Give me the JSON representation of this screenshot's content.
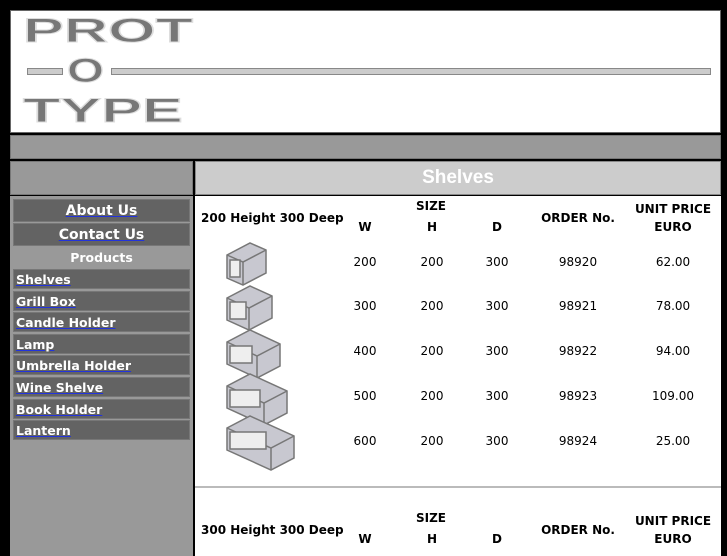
{
  "logo": {
    "lines": [
      "PROT",
      "O",
      "TYPE"
    ]
  },
  "page_title": "Shelves",
  "nav": {
    "top": [
      {
        "label": "About Us"
      },
      {
        "label": "Contact Us"
      }
    ],
    "section_label": "Products",
    "items": [
      {
        "label": "Shelves"
      },
      {
        "label": "Grill Box"
      },
      {
        "label": "Candle Holder"
      },
      {
        "label": "Lamp"
      },
      {
        "label": "Umbrella Holder"
      },
      {
        "label": "Wine Shelve"
      },
      {
        "label": "Book Holder"
      },
      {
        "label": "Lantern"
      }
    ]
  },
  "table_headers": {
    "size": "SIZE",
    "w": "W",
    "h": "H",
    "d": "D",
    "order": "ORDER No.",
    "price_line1": "UNIT PRICE",
    "price_line2": "EURO"
  },
  "sections": [
    {
      "label": "200 Height 300 Deep",
      "rows": [
        {
          "w": "200",
          "h": "200",
          "d": "300",
          "order": "98920",
          "price": "62.00"
        },
        {
          "w": "300",
          "h": "200",
          "d": "300",
          "order": "98921",
          "price": "78.00"
        },
        {
          "w": "400",
          "h": "200",
          "d": "300",
          "order": "98922",
          "price": "94.00"
        },
        {
          "w": "500",
          "h": "200",
          "d": "300",
          "order": "98923",
          "price": "109.00"
        },
        {
          "w": "600",
          "h": "200",
          "d": "300",
          "order": "98924",
          "price": "25.00"
        }
      ]
    },
    {
      "label": "300 Height 300 Deep",
      "rows": []
    }
  ]
}
